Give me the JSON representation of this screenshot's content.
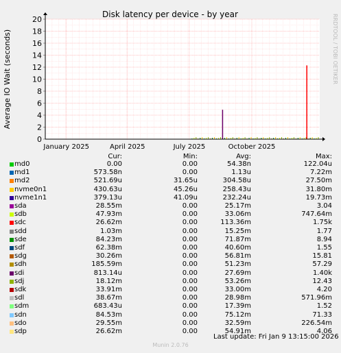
{
  "chart_data": {
    "type": "line",
    "title": "Disk latency per device - by year",
    "ylabel": "Average IO Wait (seconds)",
    "ylim": [
      0,
      20
    ],
    "yticks": [
      0,
      2,
      4,
      6,
      8,
      10,
      12,
      14,
      16,
      18,
      20
    ],
    "xlim": [
      "2024-12-01",
      "2026-01-09"
    ],
    "xticks": [
      {
        "label": "January 2025",
        "date": "2025-01-01"
      },
      {
        "label": "April 2025",
        "date": "2025-04-01"
      },
      {
        "label": "July 2025",
        "date": "2025-07-01"
      },
      {
        "label": "October 2025",
        "date": "2025-10-01"
      }
    ],
    "grid": true,
    "watermark": "RRDTOOL / TOBI OETIKER",
    "spikes": [
      {
        "series": "sdi",
        "date": "2025-08-19",
        "value": 4.9,
        "color": "#6a006a"
      },
      {
        "series": "sdc",
        "date": "2025-12-21",
        "value": 12.3,
        "color": "#ff0000"
      }
    ],
    "legend_header": {
      "cur": "Cur:",
      "min": "Min:",
      "avg": "Avg:",
      "max": "Max:"
    },
    "series": [
      {
        "name": "md0",
        "color": "#00cc00",
        "cur": "0.00",
        "min": "0.00",
        "avg": "54.38n",
        "max": "122.04u"
      },
      {
        "name": "md1",
        "color": "#0066b3",
        "cur": "573.58n",
        "min": "0.00",
        "avg": "1.13u",
        "max": "7.22m"
      },
      {
        "name": "md2",
        "color": "#ff8000",
        "cur": "521.69u",
        "min": "31.65u",
        "avg": "304.58u",
        "max": "27.50m"
      },
      {
        "name": "nvme0n1",
        "color": "#ffcc00",
        "cur": "430.63u",
        "min": "45.26u",
        "avg": "258.43u",
        "max": "31.80m"
      },
      {
        "name": "nvme1n1",
        "color": "#330099",
        "cur": "379.13u",
        "min": "41.09u",
        "avg": "232.24u",
        "max": "19.73m"
      },
      {
        "name": "sda",
        "color": "#990099",
        "cur": "28.55m",
        "min": "0.00",
        "avg": "25.17m",
        "max": "3.04"
      },
      {
        "name": "sdb",
        "color": "#ccff00",
        "cur": "47.93m",
        "min": "0.00",
        "avg": "33.06m",
        "max": "747.64m"
      },
      {
        "name": "sdc",
        "color": "#ff0000",
        "cur": "26.62m",
        "min": "0.00",
        "avg": "113.36m",
        "max": "1.75k"
      },
      {
        "name": "sdd",
        "color": "#808080",
        "cur": "1.03m",
        "min": "0.00",
        "avg": "15.25m",
        "max": "1.77"
      },
      {
        "name": "sde",
        "color": "#008f00",
        "cur": "84.23m",
        "min": "0.00",
        "avg": "71.87m",
        "max": "8.94"
      },
      {
        "name": "sdf",
        "color": "#00487d",
        "cur": "62.38m",
        "min": "0.00",
        "avg": "40.60m",
        "max": "1.55"
      },
      {
        "name": "sdg",
        "color": "#b35a00",
        "cur": "30.26m",
        "min": "0.00",
        "avg": "56.81m",
        "max": "15.81"
      },
      {
        "name": "sdh",
        "color": "#b38f00",
        "cur": "185.59m",
        "min": "0.00",
        "avg": "51.23m",
        "max": "57.29"
      },
      {
        "name": "sdi",
        "color": "#6b006b",
        "cur": "813.14u",
        "min": "0.00",
        "avg": "27.69m",
        "max": "1.40k"
      },
      {
        "name": "sdj",
        "color": "#8fb300",
        "cur": "18.12m",
        "min": "0.00",
        "avg": "53.26m",
        "max": "12.43"
      },
      {
        "name": "sdk",
        "color": "#b30000",
        "cur": "33.91m",
        "min": "0.00",
        "avg": "33.00m",
        "max": "4.20"
      },
      {
        "name": "sdl",
        "color": "#bebebe",
        "cur": "38.67m",
        "min": "0.00",
        "avg": "28.98m",
        "max": "571.96m"
      },
      {
        "name": "sdm",
        "color": "#80ff80",
        "cur": "683.43u",
        "min": "0.00",
        "avg": "17.39m",
        "max": "1.52"
      },
      {
        "name": "sdn",
        "color": "#80c9ff",
        "cur": "84.53m",
        "min": "0.00",
        "avg": "75.12m",
        "max": "71.33"
      },
      {
        "name": "sdo",
        "color": "#ffc080",
        "cur": "29.55m",
        "min": "0.00",
        "avg": "32.59m",
        "max": "226.54m"
      },
      {
        "name": "sdp",
        "color": "#ffe680",
        "cur": "26.62m",
        "min": "0.00",
        "avg": "54.91m",
        "max": "4.06"
      }
    ],
    "last_update": "Last update: Fri Jan  9 13:15:00 2026",
    "footer": "Munin 2.0.76"
  }
}
